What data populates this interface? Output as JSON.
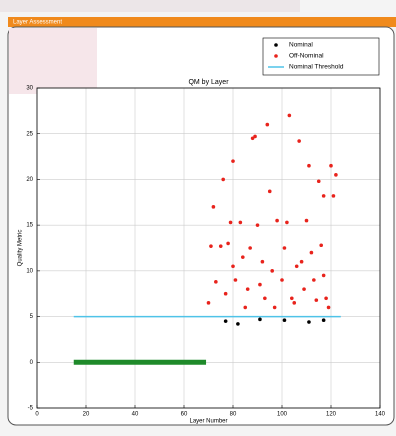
{
  "window_title": "Layer Assessment",
  "chart_data": {
    "type": "scatter",
    "title": "QM by Layer",
    "xlabel": "Layer Number",
    "ylabel": "Quality Metric",
    "xlim": [
      0,
      140
    ],
    "xticks": [
      0,
      20,
      40,
      60,
      80,
      100,
      120,
      140
    ],
    "ylim": [
      -5,
      30
    ],
    "yticks": [
      -5,
      0,
      5,
      10,
      15,
      20,
      25,
      30
    ],
    "grid": true,
    "legend": "upper right",
    "series": [
      {
        "name": "Nominal",
        "color": "#000000",
        "style": "points",
        "x": [
          77,
          82,
          91,
          101,
          111,
          117
        ],
        "values": [
          4.5,
          4.2,
          4.7,
          4.6,
          4.4,
          4.6
        ]
      },
      {
        "name": "Off-Nominal",
        "color": "#e8231c",
        "style": "points",
        "x": [
          70,
          71,
          72,
          73,
          75,
          76,
          77,
          78,
          79,
          80,
          80,
          81,
          83,
          84,
          85,
          86,
          87,
          88,
          89,
          90,
          91,
          92,
          93,
          94,
          95,
          96,
          97,
          98,
          100,
          101,
          102,
          103,
          104,
          105,
          106,
          107,
          108,
          109,
          110,
          111,
          112,
          113,
          114,
          115,
          116,
          117,
          117,
          118,
          119,
          120,
          121,
          122
        ],
        "values": [
          6.5,
          12.7,
          17,
          8.8,
          12.7,
          20,
          7.5,
          13,
          15.3,
          22,
          10.5,
          9,
          15.3,
          11.5,
          6,
          8,
          12.5,
          24.5,
          24.7,
          15,
          8.5,
          11,
          7,
          26,
          18.7,
          10,
          6,
          15.5,
          9,
          12.5,
          15.3,
          27,
          7,
          6.5,
          10.5,
          24.2,
          11,
          8,
          15.5,
          21.5,
          12,
          9,
          6.8,
          19.8,
          12.8,
          18.2,
          9.5,
          7,
          6,
          21.5,
          18.2,
          20.5
        ]
      },
      {
        "name": "Nominal Threshold",
        "color": "#4fc3e8",
        "style": "line",
        "width": 1.5,
        "x": [
          15,
          124
        ],
        "values": [
          5,
          5
        ]
      },
      {
        "color": "#1f8a2a",
        "style": "line",
        "width": 5,
        "x": [
          15,
          69
        ],
        "values": [
          0,
          0
        ]
      }
    ]
  }
}
